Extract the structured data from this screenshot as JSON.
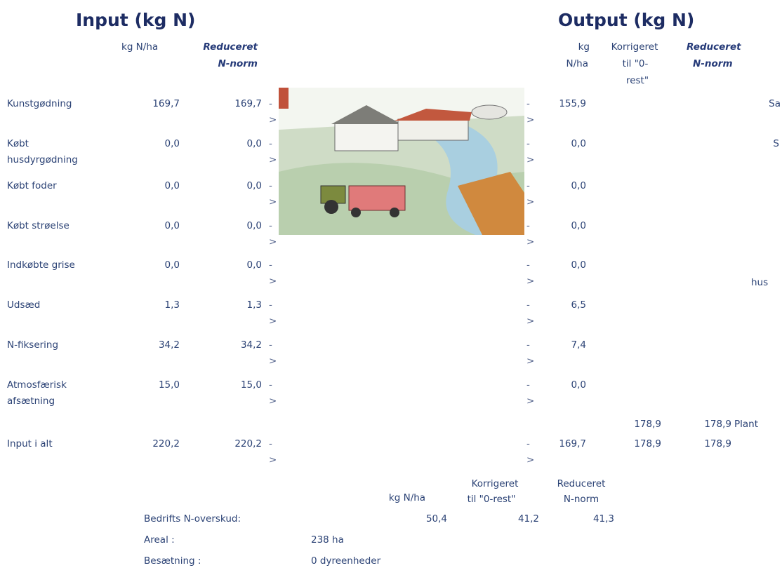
{
  "input": {
    "title": "Input (kg N)",
    "col_headers": [
      [
        "kg N/ha"
      ],
      [
        "Reduceret",
        "N-norm"
      ]
    ]
  },
  "output": {
    "title": "Output (kg N)",
    "col_headers": [
      [
        "kg",
        "N/ha"
      ],
      [
        "Korrigeret",
        "til \"0-",
        "rest\""
      ],
      [
        "Reduceret",
        "N-norm"
      ]
    ]
  },
  "rows": [
    {
      "label": "Kunstgødning",
      "kg_n_ha": "169,7",
      "reduceret": "169,7",
      "arrow_in": "->",
      "arrow_out": "->",
      "output_kg_n_ha": "155,9"
    },
    {
      "label": "Købt husdyrgødning",
      "kg_n_ha": "0,0",
      "reduceret": "0,0",
      "arrow_in": "->",
      "arrow_out": "->",
      "output_kg_n_ha": "0,0"
    },
    {
      "label": "Købt foder",
      "kg_n_ha": "0,0",
      "reduceret": "0,0",
      "arrow_in": "->",
      "arrow_out": "->",
      "output_kg_n_ha": "0,0"
    },
    {
      "label": "Købt strøelse",
      "kg_n_ha": "0,0",
      "reduceret": "0,0",
      "arrow_in": "->",
      "arrow_out": "->",
      "output_kg_n_ha": "0,0"
    },
    {
      "label": "Indkøbte grise",
      "kg_n_ha": "0,0",
      "reduceret": "0,0",
      "arrow_in": "->",
      "arrow_out": "->",
      "output_kg_n_ha": "0,0"
    },
    {
      "label": "Udsæd",
      "kg_n_ha": "1,3",
      "reduceret": "1,3",
      "arrow_in": "->",
      "arrow_out": "->",
      "output_kg_n_ha": "6,5"
    },
    {
      "label": "N-fiksering",
      "kg_n_ha": "34,2",
      "reduceret": "34,2",
      "arrow_in": "->",
      "arrow_out": "->",
      "output_kg_n_ha": "7,4"
    },
    {
      "label": "Atmosfærisk afsætning",
      "kg_n_ha": "15,0",
      "reduceret": "15,0",
      "arrow_in": "->",
      "arrow_out": "->",
      "output_kg_n_ha": "0,0"
    }
  ],
  "subtotal_row": {
    "korrigeret": "178,9",
    "reduceret": "178,9",
    "label": "Plant"
  },
  "total_row": {
    "label": "Input i alt",
    "kg_n_ha": "220,2",
    "reduceret": "220,2",
    "arrow_in": "->",
    "arrow_out": "->",
    "output_kg_n_ha": "169,7",
    "output_korrigeret": "178,9",
    "output_reduceret": "178,9"
  },
  "right_edge_labels": [
    "Sa",
    "S",
    "hus"
  ],
  "summary": {
    "col_headers": [
      [
        "kg N/ha"
      ],
      [
        "Korrigeret",
        "til \"0-rest\""
      ],
      [
        "Reduceret",
        "N-norm"
      ]
    ],
    "overskud": {
      "label": "Bedrifts N-overskud:",
      "values": [
        "50,4",
        "41,2",
        "41,3"
      ]
    },
    "areal": {
      "label": "Areal :",
      "value": "238 ha"
    },
    "besaetning": {
      "label": "Besætning :",
      "value": "0 dyreenheder"
    }
  }
}
